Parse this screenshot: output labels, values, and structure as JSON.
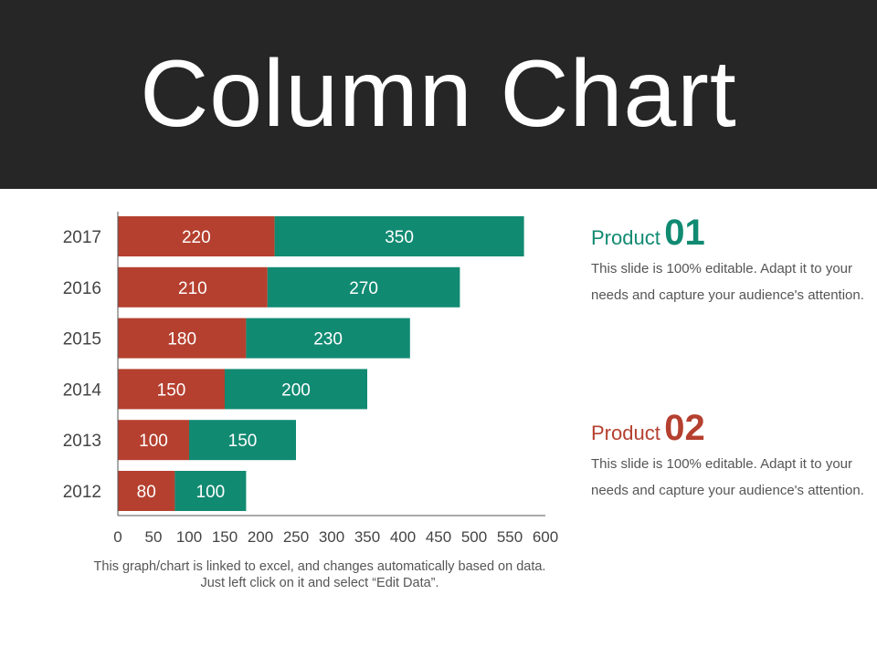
{
  "title": "Column Chart",
  "chart_data": {
    "type": "bar",
    "orientation": "horizontal",
    "stacked": true,
    "categories": [
      "2017",
      "2016",
      "2015",
      "2014",
      "2013",
      "2012"
    ],
    "series": [
      {
        "values": [
          220,
          210,
          180,
          150,
          100,
          80
        ],
        "color": "#b5402f"
      },
      {
        "values": [
          350,
          270,
          230,
          200,
          150,
          100
        ],
        "color": "#118a72"
      }
    ],
    "xticks": [
      "0",
      "50",
      "100",
      "150",
      "200",
      "250",
      "300",
      "350",
      "400",
      "450",
      "500",
      "550",
      "600"
    ],
    "xlim": [
      0,
      600
    ],
    "grid": false,
    "data_labels": true
  },
  "chart_note": "This graph/chart is linked to excel, and changes automatically based on data. Just left click on it and select “Edit Data”.",
  "products": [
    {
      "word": "Product",
      "number": "01",
      "color": "#118a72",
      "description": "This slide is 100% editable. Adapt it to your needs and capture your audience's attention."
    },
    {
      "word": "Product",
      "number": "02",
      "color": "#b5402f",
      "description": "This slide is 100% editable. Adapt it to your needs and capture your audience's attention."
    }
  ]
}
